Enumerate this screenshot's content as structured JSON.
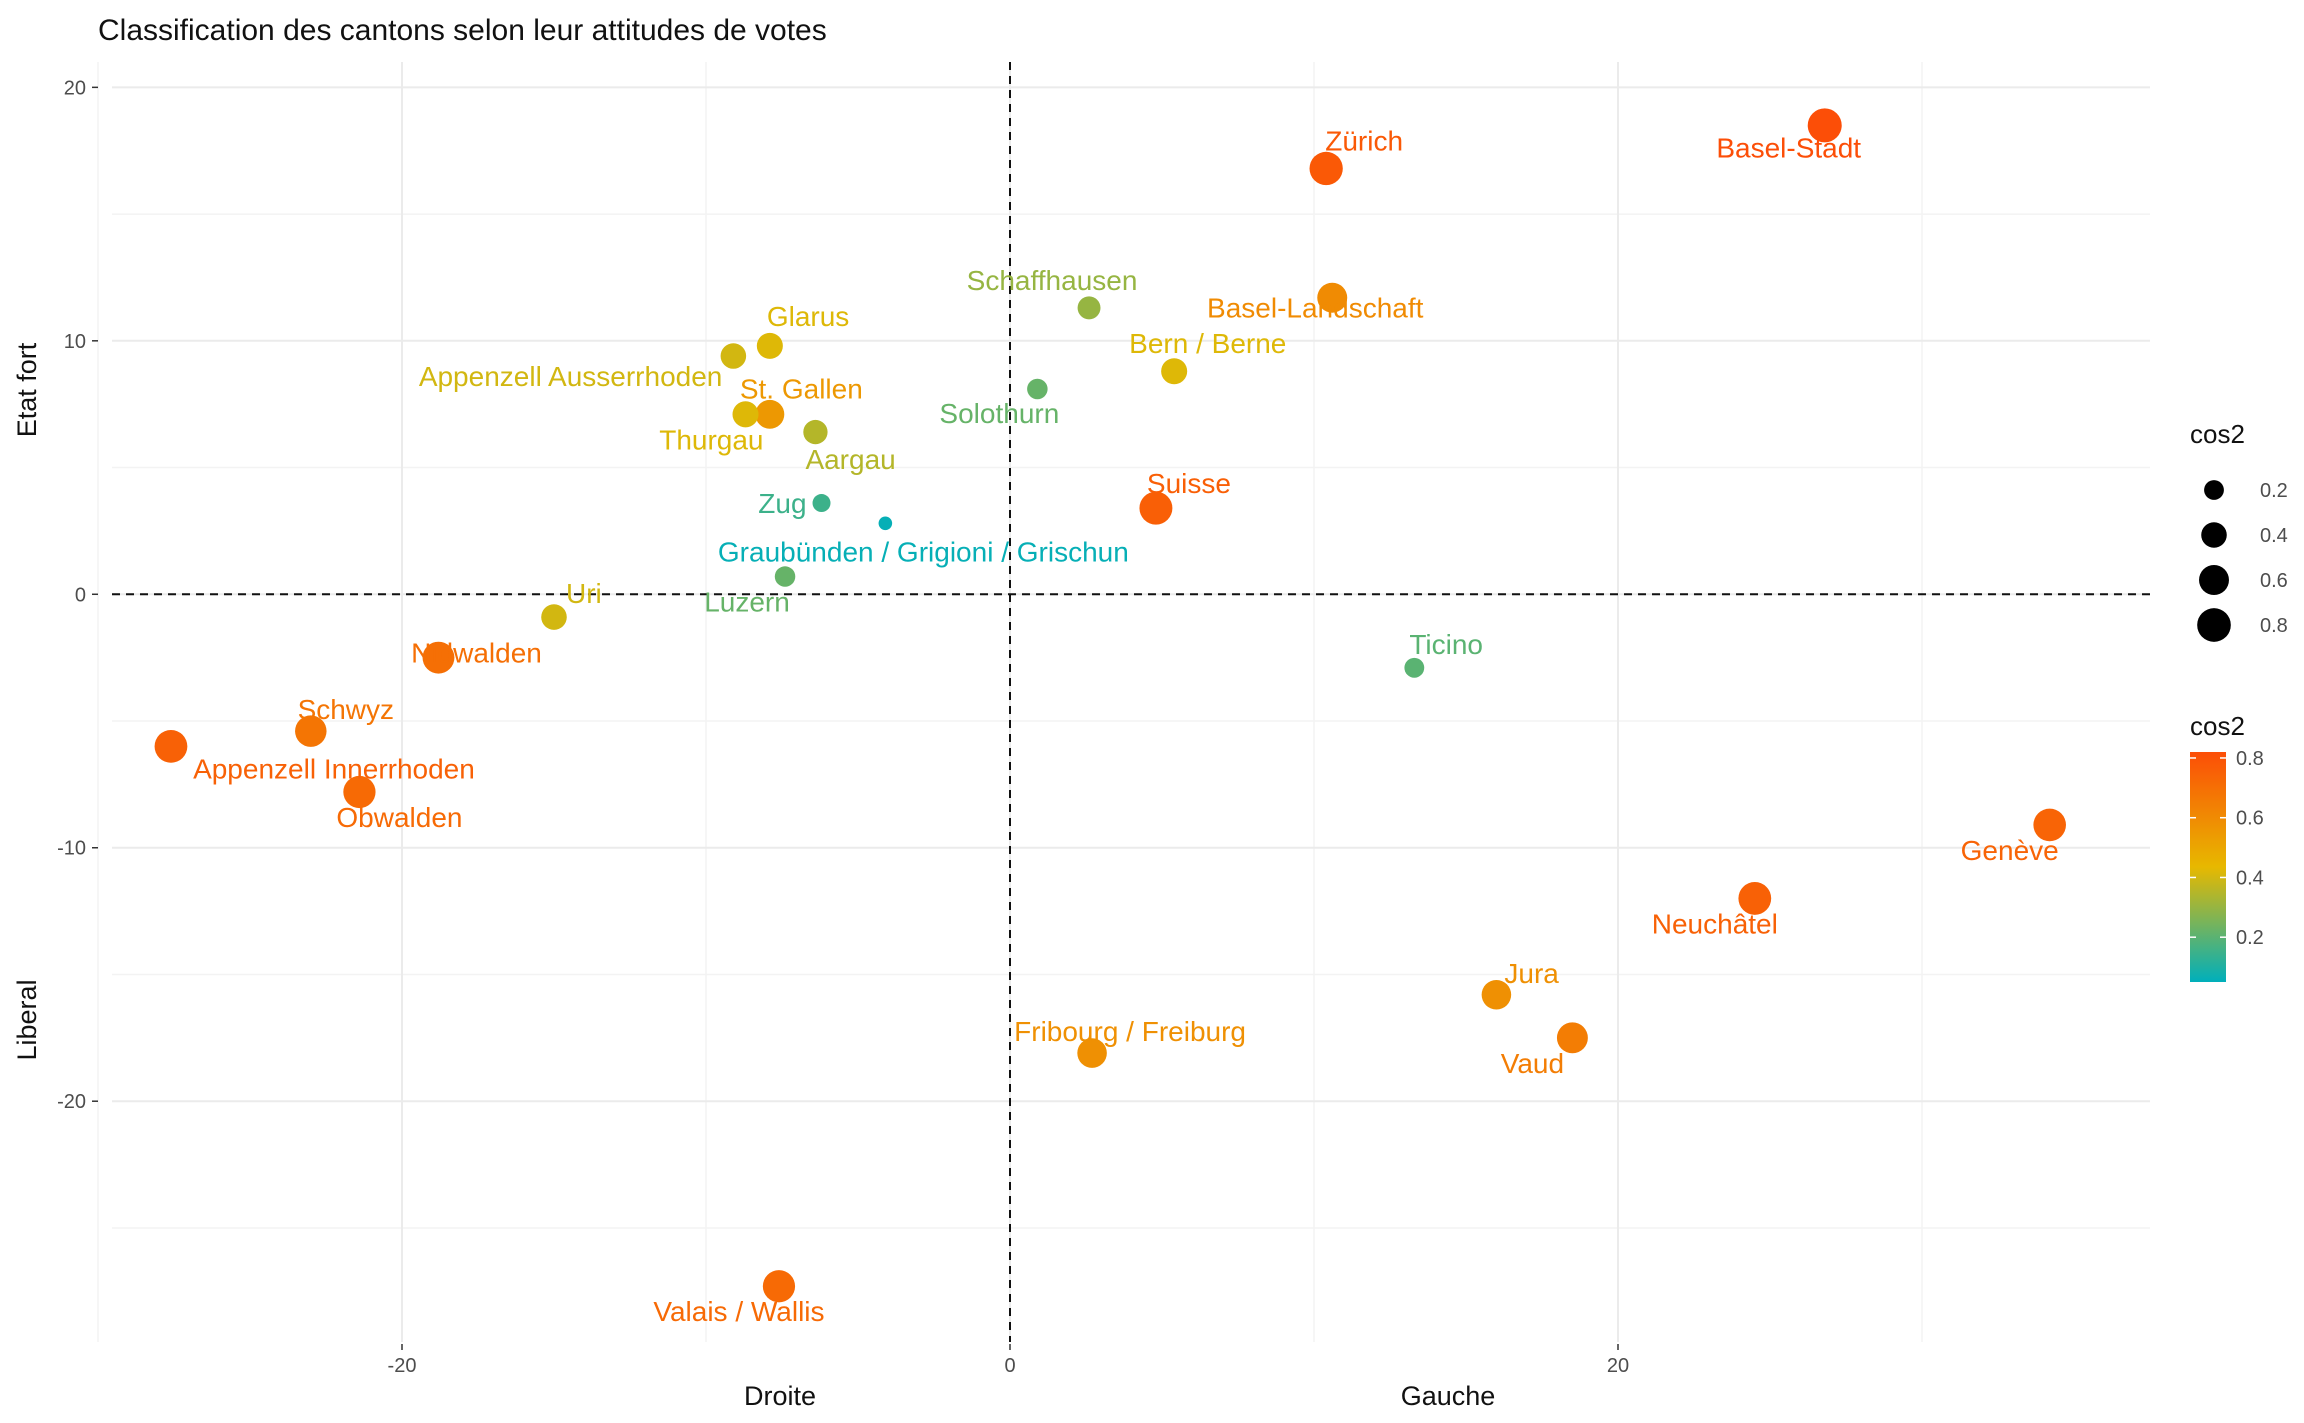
{
  "chart_data": {
    "type": "scatter",
    "title": "Classification des cantons selon leur attitudes de votes",
    "xlabel_left": "Droite",
    "xlabel_right": "Gauche",
    "ylabel_top": "Etat fort",
    "ylabel_bottom": "Liberal",
    "xlim": [
      -30,
      37.5
    ],
    "ylim": [
      -29.5,
      21
    ],
    "x_ticks": [
      -20,
      0,
      20
    ],
    "y_ticks": [
      -20,
      -10,
      0,
      10,
      20
    ],
    "grid": true,
    "reference_lines": {
      "x": 0,
      "y": 0,
      "style": "dashed"
    },
    "legend_position": "right",
    "legend": {
      "size_title": "cos2",
      "size_values": [
        0.2,
        0.4,
        0.6,
        0.8
      ],
      "color_title": "cos2",
      "color_ticks": [
        0.2,
        0.4,
        0.6,
        0.8
      ],
      "color_range": [
        0.05,
        0.82
      ],
      "color_stops": [
        "#00AFBB",
        "#E7B800",
        "#FC4E07"
      ]
    },
    "points": [
      {
        "label": "Zürich",
        "x": 10.4,
        "y": 16.8,
        "cos2": 0.78
      },
      {
        "label": "Basel-Stadt",
        "x": 26.8,
        "y": 18.5,
        "cos2": 0.82
      },
      {
        "label": "Schaffhausen",
        "x": 2.6,
        "y": 11.3,
        "cos2": 0.3
      },
      {
        "label": "Basel-Landschaft",
        "x": 10.6,
        "y": 11.7,
        "cos2": 0.6
      },
      {
        "label": "Glarus",
        "x": -7.9,
        "y": 9.8,
        "cos2": 0.42
      },
      {
        "label": "Appenzell Ausserrhoden",
        "x": -9.1,
        "y": 9.4,
        "cos2": 0.4
      },
      {
        "label": "Bern / Berne",
        "x": 5.4,
        "y": 8.8,
        "cos2": 0.42
      },
      {
        "label": "Solothurn",
        "x": 0.9,
        "y": 8.1,
        "cos2": 0.22
      },
      {
        "label": "St. Gallen",
        "x": -7.9,
        "y": 7.1,
        "cos2": 0.55
      },
      {
        "label": "Thurgau",
        "x": -8.7,
        "y": 7.1,
        "cos2": 0.42
      },
      {
        "label": "Aargau",
        "x": -6.4,
        "y": 6.4,
        "cos2": 0.35
      },
      {
        "label": "Suisse",
        "x": 4.8,
        "y": 3.4,
        "cos2": 0.76
      },
      {
        "label": "Zug",
        "x": -6.2,
        "y": 3.6,
        "cos2": 0.15
      },
      {
        "label": "Graubünden / Grigioni / Grischun",
        "x": -4.1,
        "y": 2.8,
        "cos2": 0.06
      },
      {
        "label": "Luzern",
        "x": -7.4,
        "y": 0.7,
        "cos2": 0.22
      },
      {
        "label": "Uri",
        "x": -15.0,
        "y": -0.9,
        "cos2": 0.4
      },
      {
        "label": "Nidwalden",
        "x": -18.8,
        "y": -2.5,
        "cos2": 0.7
      },
      {
        "label": "Ticino",
        "x": 13.3,
        "y": -2.9,
        "cos2": 0.2
      },
      {
        "label": "Schwyz",
        "x": -23.0,
        "y": -5.4,
        "cos2": 0.68
      },
      {
        "label": "Appenzell Innerrhoden",
        "x": -27.6,
        "y": -6.0,
        "cos2": 0.75
      },
      {
        "label": "Obwalden",
        "x": -21.4,
        "y": -7.8,
        "cos2": 0.72
      },
      {
        "label": "Genève",
        "x": 34.2,
        "y": -9.1,
        "cos2": 0.74
      },
      {
        "label": "Neuchâtel",
        "x": 24.5,
        "y": -12.0,
        "cos2": 0.75
      },
      {
        "label": "Jura",
        "x": 16.0,
        "y": -15.8,
        "cos2": 0.58
      },
      {
        "label": "Vaud",
        "x": 18.5,
        "y": -17.5,
        "cos2": 0.65
      },
      {
        "label": "Fribourg / Freiburg",
        "x": 2.7,
        "y": -18.1,
        "cos2": 0.58
      },
      {
        "label": "Valais / Wallis",
        "x": -7.6,
        "y": -27.3,
        "cos2": 0.72
      }
    ]
  }
}
